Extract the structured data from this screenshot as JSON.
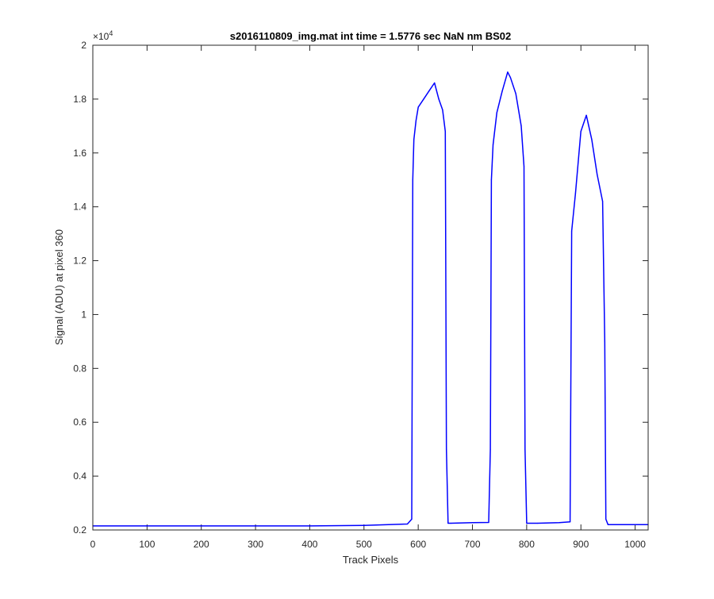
{
  "chart_data": {
    "type": "line",
    "title": "s2016110809_img.mat int time = 1.5776 sec  NaN nm BS02",
    "xlabel": "Track Pixels",
    "ylabel": "Signal (ADU) at pixel 360",
    "xlim": [
      0,
      1024
    ],
    "ylim": [
      2000,
      20000
    ],
    "y_exponent_label": "×10",
    "y_exponent_power": "4",
    "x_ticks": [
      0,
      100,
      200,
      300,
      400,
      500,
      600,
      700,
      800,
      900,
      1000
    ],
    "x_tick_labels": [
      "0",
      "100",
      "200",
      "300",
      "400",
      "500",
      "600",
      "700",
      "800",
      "900",
      "1000"
    ],
    "y_ticks": [
      2000,
      4000,
      6000,
      8000,
      10000,
      12000,
      14000,
      16000,
      18000,
      20000
    ],
    "y_tick_labels": [
      "0.2",
      "0.4",
      "0.6",
      "0.8",
      "1",
      "1.2",
      "1.4",
      "1.6",
      "1.8",
      "2"
    ],
    "grid": false,
    "line_color": "#0000ff",
    "series": [
      {
        "x": [
          0,
          100,
          200,
          300,
          400,
          500,
          580,
          588,
          590,
          592,
          596,
          600,
          610,
          620,
          630,
          638,
          645,
          650,
          652,
          655,
          660,
          700,
          730,
          733,
          735,
          738,
          745,
          755,
          765,
          770,
          780,
          790,
          795,
          797,
          800,
          820,
          860,
          880,
          883,
          890,
          900,
          910,
          920,
          930,
          940,
          944,
          946,
          950,
          1000,
          1024
        ],
        "y": [
          2150,
          2150,
          2150,
          2150,
          2150,
          2170,
          2220,
          2400,
          15000,
          16500,
          17200,
          17700,
          18000,
          18300,
          18600,
          18000,
          17600,
          16800,
          5000,
          2250,
          2250,
          2270,
          2280,
          5000,
          15000,
          16300,
          17500,
          18300,
          19000,
          18800,
          18200,
          17000,
          15500,
          5000,
          2250,
          2250,
          2270,
          2300,
          13100,
          14500,
          16800,
          17400,
          16500,
          15200,
          14200,
          9000,
          2400,
          2200,
          2200,
          2200
        ]
      }
    ]
  }
}
